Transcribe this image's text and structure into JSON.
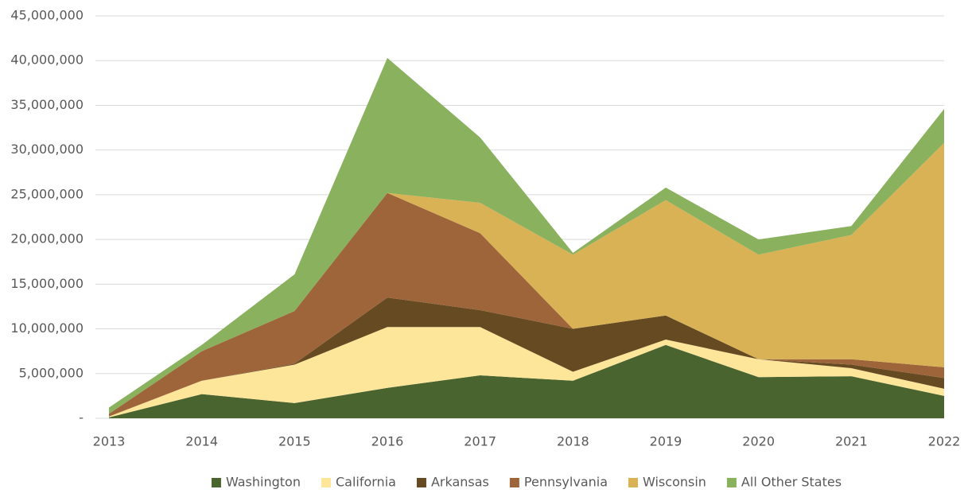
{
  "chart_data": {
    "type": "stacked-area",
    "categories": [
      "2013",
      "2014",
      "2015",
      "2016",
      "2017",
      "2018",
      "2019",
      "2020",
      "2021",
      "2022"
    ],
    "series": [
      {
        "name": "Washington",
        "color": "#4a6430",
        "values": [
          100000,
          2700000,
          1700000,
          3400000,
          4800000,
          4200000,
          8200000,
          4600000,
          4700000,
          2500000
        ]
      },
      {
        "name": "California",
        "color": "#fde59a",
        "values": [
          100000,
          1500000,
          4300000,
          6800000,
          5400000,
          1000000,
          600000,
          2000000,
          900000,
          800000
        ]
      },
      {
        "name": "Arkansas",
        "color": "#654a22",
        "values": [
          0,
          0,
          100000,
          3300000,
          1900000,
          4800000,
          2700000,
          0,
          400000,
          1200000
        ]
      },
      {
        "name": "Pennsylvania",
        "color": "#9f653a",
        "values": [
          300000,
          3300000,
          5900000,
          11700000,
          8600000,
          0,
          0,
          0,
          600000,
          1200000
        ]
      },
      {
        "name": "Wisconsin",
        "color": "#d9b256",
        "values": [
          0,
          0,
          0,
          0,
          3400000,
          8300000,
          12900000,
          11700000,
          13900000,
          25100000
        ]
      },
      {
        "name": "All Other States",
        "color": "#8ab15e",
        "values": [
          700000,
          700000,
          4100000,
          15100000,
          7300000,
          200000,
          1400000,
          1700000,
          1000000,
          3800000
        ]
      }
    ],
    "ylim": [
      0,
      45000000
    ],
    "yticks": [
      {
        "value": 0,
        "label": "-"
      },
      {
        "value": 5000000,
        "label": "5,000,000"
      },
      {
        "value": 10000000,
        "label": "10,000,000"
      },
      {
        "value": 15000000,
        "label": "15,000,000"
      },
      {
        "value": 20000000,
        "label": "20,000,000"
      },
      {
        "value": 25000000,
        "label": "25,000,000"
      },
      {
        "value": 30000000,
        "label": "30,000,000"
      },
      {
        "value": 35000000,
        "label": "35,000,000"
      },
      {
        "value": 40000000,
        "label": "40,000,000"
      },
      {
        "value": 45000000,
        "label": "45,000,000"
      }
    ],
    "grid": true,
    "legend": "bottom"
  }
}
